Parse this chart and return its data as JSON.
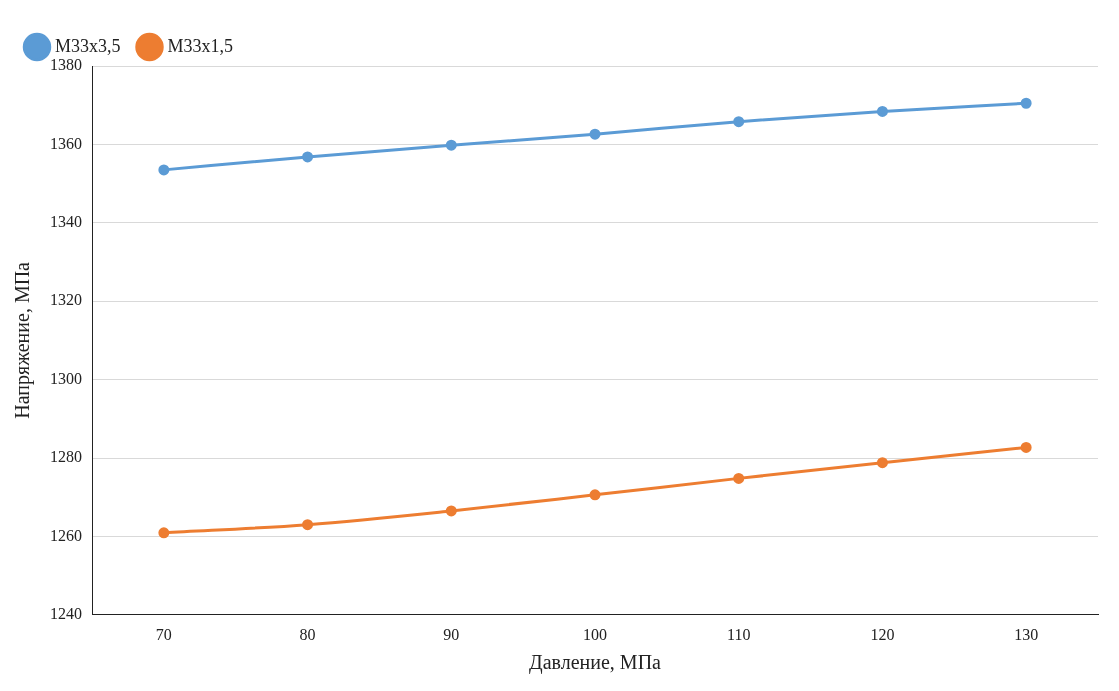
{
  "chart_data": {
    "type": "line",
    "xlabel": "Давление, МПа",
    "ylabel": "Напряжение, МПа",
    "categories": [
      "70",
      "80",
      "90",
      "100",
      "110",
      "120",
      "130"
    ],
    "series": [
      {
        "name": "М33х3,5",
        "color": "#5b9bd5",
        "values": [
          1353.5,
          1356.8,
          1359.8,
          1362.6,
          1365.8,
          1368.4,
          1370.5
        ]
      },
      {
        "name": "М33х1,5",
        "color": "#ed7d31",
        "values": [
          1260.9,
          1263.0,
          1266.5,
          1270.6,
          1274.8,
          1278.8,
          1282.7
        ]
      }
    ],
    "ylim": [
      1240,
      1380
    ],
    "yticks": [
      1240,
      1260,
      1280,
      1300,
      1320,
      1340,
      1360,
      1380
    ],
    "grid": "y",
    "legend": "top left",
    "marker": "circle",
    "line_style": "solid"
  }
}
